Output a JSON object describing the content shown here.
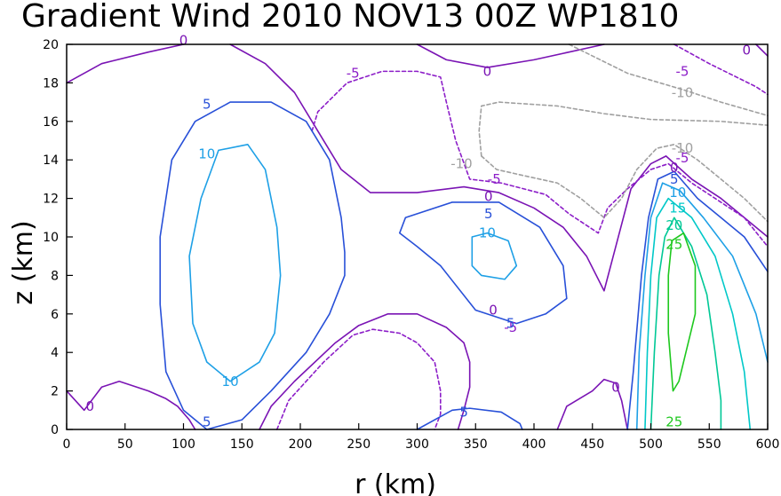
{
  "chart_data": {
    "type": "contour",
    "title": "Gradient Wind 2010 NOV13 00Z   WP1810",
    "xlabel": "r (km)",
    "ylabel": "z (km)",
    "xlim": [
      0,
      600
    ],
    "ylim": [
      0,
      20
    ],
    "xticks": [
      0,
      50,
      100,
      150,
      200,
      250,
      300,
      350,
      400,
      450,
      500,
      550,
      600
    ],
    "yticks": [
      0,
      2,
      4,
      6,
      8,
      10,
      12,
      14,
      16,
      18,
      20
    ],
    "colors": {
      "-10": "#a0a0a0",
      "-5": "#8c1ec8",
      "0": "#7a14b4",
      "5": "#2850d8",
      "10": "#1ea0e6",
      "15": "#00c8c8",
      "20": "#00c896",
      "25": "#1ec81e"
    },
    "contours": [
      {
        "level": 0,
        "dash": false,
        "points": [
          [
            0,
            18
          ],
          [
            30,
            19
          ],
          [
            70,
            19.6
          ],
          [
            100,
            20
          ]
        ]
      },
      {
        "level": 0,
        "dash": false,
        "points": [
          [
            140,
            20
          ],
          [
            170,
            19
          ],
          [
            195,
            17.5
          ],
          [
            215,
            15.5
          ],
          [
            235,
            13.5
          ],
          [
            260,
            12.3
          ],
          [
            300,
            12.3
          ],
          [
            340,
            12.6
          ],
          [
            370,
            12.3
          ],
          [
            400,
            11.5
          ],
          [
            425,
            10.5
          ],
          [
            445,
            9
          ],
          [
            460,
            7.2
          ],
          [
            470,
            9.5
          ],
          [
            483,
            12.5
          ],
          [
            500,
            13.8
          ],
          [
            513,
            14.2
          ],
          [
            535,
            13
          ],
          [
            560,
            12
          ],
          [
            580,
            11
          ],
          [
            600,
            10
          ]
        ]
      },
      {
        "level": 0,
        "dash": false,
        "points": [
          [
            300,
            20
          ],
          [
            325,
            19.2
          ],
          [
            360,
            18.8
          ],
          [
            400,
            19.2
          ],
          [
            430,
            19.6
          ],
          [
            460,
            20
          ]
        ]
      },
      {
        "level": 0,
        "dash": false,
        "points": [
          [
            590,
            20
          ],
          [
            600,
            19.4
          ]
        ]
      },
      {
        "level": 0,
        "dash": false,
        "points": [
          [
            0,
            2
          ],
          [
            15,
            1
          ],
          [
            30,
            2.2
          ],
          [
            45,
            2.5
          ],
          [
            70,
            2
          ],
          [
            85,
            1.6
          ],
          [
            95,
            1.2
          ],
          [
            105,
            0.5
          ],
          [
            110,
            0
          ]
        ]
      },
      {
        "level": 0,
        "dash": false,
        "points": [
          [
            165,
            0
          ],
          [
            175,
            1.2
          ],
          [
            195,
            2.5
          ],
          [
            230,
            4.5
          ],
          [
            250,
            5.4
          ],
          [
            275,
            6
          ],
          [
            300,
            6
          ],
          [
            325,
            5.3
          ],
          [
            340,
            4.5
          ],
          [
            345,
            3.5
          ],
          [
            345,
            2.2
          ],
          [
            340,
            1
          ],
          [
            335,
            0
          ]
        ]
      },
      {
        "level": 0,
        "dash": false,
        "points": [
          [
            420,
            0
          ],
          [
            428,
            1.2
          ],
          [
            450,
            2
          ],
          [
            460,
            2.6
          ],
          [
            470,
            2.4
          ],
          [
            475,
            1.5
          ],
          [
            480,
            0
          ]
        ]
      },
      {
        "level": -5,
        "dash": true,
        "points": [
          [
            210,
            15.5
          ],
          [
            215,
            16.5
          ],
          [
            240,
            18
          ],
          [
            270,
            18.6
          ],
          [
            300,
            18.6
          ],
          [
            320,
            18.3
          ],
          [
            325,
            17
          ],
          [
            333,
            15
          ],
          [
            345,
            13
          ],
          [
            372,
            12.8
          ],
          [
            410,
            12.2
          ],
          [
            430,
            11.2
          ],
          [
            455,
            10.2
          ],
          [
            463,
            11.5
          ],
          [
            480,
            12.5
          ],
          [
            500,
            13.5
          ],
          [
            515,
            13.8
          ],
          [
            535,
            12.8
          ],
          [
            555,
            12
          ],
          [
            580,
            11
          ],
          [
            600,
            9.5
          ]
        ]
      },
      {
        "level": -5,
        "dash": true,
        "points": [
          [
            520,
            20
          ],
          [
            550,
            19
          ],
          [
            590,
            17.8
          ],
          [
            600,
            17.4
          ]
        ]
      },
      {
        "level": -5,
        "dash": true,
        "points": [
          [
            180,
            0
          ],
          [
            190,
            1.5
          ],
          [
            220,
            3.5
          ],
          [
            245,
            4.9
          ],
          [
            262,
            5.2
          ],
          [
            285,
            5
          ],
          [
            300,
            4.5
          ],
          [
            315,
            3.5
          ],
          [
            320,
            2
          ],
          [
            320,
            0.8
          ],
          [
            315,
            0
          ]
        ]
      },
      {
        "level": -10,
        "dash": true,
        "points": [
          [
            430,
            20
          ],
          [
            480,
            18.5
          ],
          [
            530,
            17.6
          ],
          [
            560,
            17
          ],
          [
            600,
            16.3
          ]
        ]
      },
      {
        "level": -10,
        "dash": true,
        "points": [
          [
            355,
            14.2
          ],
          [
            353,
            15.5
          ],
          [
            355,
            16.8
          ],
          [
            370,
            17
          ],
          [
            420,
            16.8
          ],
          [
            460,
            16.4
          ],
          [
            500,
            16.1
          ],
          [
            560,
            16
          ],
          [
            600,
            15.8
          ]
        ]
      },
      {
        "level": -10,
        "dash": true,
        "points": [
          [
            355,
            14.2
          ],
          [
            368,
            13.5
          ],
          [
            390,
            13.2
          ],
          [
            420,
            12.8
          ],
          [
            440,
            12
          ],
          [
            460,
            11
          ],
          [
            475,
            12
          ],
          [
            488,
            13.5
          ],
          [
            505,
            14.6
          ],
          [
            520,
            14.8
          ],
          [
            540,
            14
          ],
          [
            560,
            13
          ],
          [
            580,
            12
          ],
          [
            600,
            10.8
          ]
        ]
      },
      {
        "level": 5,
        "dash": false,
        "points": [
          [
            120,
            0
          ],
          [
            150,
            0.5
          ],
          [
            175,
            2
          ],
          [
            205,
            4
          ],
          [
            225,
            6
          ],
          [
            238,
            8
          ],
          [
            238,
            9.2
          ],
          [
            235,
            11
          ],
          [
            225,
            14
          ],
          [
            205,
            16
          ],
          [
            175,
            17
          ],
          [
            140,
            17
          ],
          [
            110,
            16
          ],
          [
            90,
            14
          ],
          [
            80,
            10
          ],
          [
            80,
            6.5
          ],
          [
            85,
            3
          ],
          [
            100,
            1
          ],
          [
            120,
            0
          ]
        ]
      },
      {
        "level": 5,
        "dash": false,
        "points": [
          [
            410,
            6
          ],
          [
            385,
            5.5
          ],
          [
            350,
            6.2
          ],
          [
            320,
            8.5
          ],
          [
            300,
            9.5
          ],
          [
            285,
            10.2
          ],
          [
            290,
            11
          ],
          [
            330,
            11.8
          ],
          [
            370,
            11.8
          ],
          [
            405,
            10.5
          ],
          [
            425,
            8.5
          ],
          [
            428,
            6.8
          ],
          [
            410,
            6
          ]
        ]
      },
      {
        "level": 5,
        "dash": false,
        "points": [
          [
            300,
            0
          ],
          [
            330,
            1
          ],
          [
            345,
            1.1
          ],
          [
            372,
            0.9
          ],
          [
            388,
            0.3
          ],
          [
            390,
            0
          ]
        ]
      },
      {
        "level": 5,
        "dash": false,
        "points": [
          [
            480,
            0
          ],
          [
            485,
            3
          ],
          [
            492,
            8
          ],
          [
            498,
            11
          ],
          [
            506,
            13
          ],
          [
            520,
            13.4
          ],
          [
            540,
            12
          ],
          [
            560,
            11
          ],
          [
            580,
            10
          ],
          [
            600,
            8.2
          ]
        ]
      },
      {
        "level": 10,
        "dash": false,
        "points": [
          [
            140,
            2.5
          ],
          [
            165,
            3.5
          ],
          [
            178,
            5
          ],
          [
            183,
            8
          ],
          [
            180,
            10.5
          ],
          [
            170,
            13.5
          ],
          [
            155,
            14.8
          ],
          [
            130,
            14.5
          ],
          [
            115,
            12
          ],
          [
            105,
            9
          ],
          [
            108,
            5.5
          ],
          [
            120,
            3.5
          ],
          [
            140,
            2.5
          ]
        ]
      },
      {
        "level": 10,
        "dash": false,
        "points": [
          [
            347,
            10
          ],
          [
            360,
            10.2
          ],
          [
            378,
            9.8
          ],
          [
            385,
            8.5
          ],
          [
            375,
            7.8
          ],
          [
            355,
            8
          ],
          [
            347,
            8.5
          ],
          [
            347,
            10
          ]
        ]
      },
      {
        "level": 10,
        "dash": false,
        "points": [
          [
            488,
            0
          ],
          [
            490,
            4
          ],
          [
            495,
            8
          ],
          [
            500,
            11
          ],
          [
            510,
            12.8
          ],
          [
            525,
            12.4
          ],
          [
            545,
            11
          ],
          [
            570,
            9
          ],
          [
            590,
            6
          ],
          [
            600,
            3.5
          ]
        ]
      },
      {
        "level": 15,
        "dash": false,
        "points": [
          [
            495,
            0
          ],
          [
            497,
            4
          ],
          [
            500,
            8
          ],
          [
            505,
            11
          ],
          [
            515,
            12
          ],
          [
            535,
            11
          ],
          [
            555,
            9
          ],
          [
            570,
            6
          ],
          [
            580,
            3
          ],
          [
            585,
            0
          ]
        ]
      },
      {
        "level": 20,
        "dash": false,
        "points": [
          [
            500,
            0
          ],
          [
            503,
            4
          ],
          [
            507,
            8
          ],
          [
            512,
            10
          ],
          [
            520,
            11
          ],
          [
            535,
            9.5
          ],
          [
            548,
            7
          ],
          [
            555,
            4
          ],
          [
            560,
            1.5
          ],
          [
            560,
            0
          ]
        ]
      },
      {
        "level": 25,
        "dash": false,
        "points": [
          [
            519,
            2
          ],
          [
            515,
            5
          ],
          [
            515,
            8
          ],
          [
            518,
            9.8
          ],
          [
            528,
            10.2
          ],
          [
            538,
            8.5
          ],
          [
            538,
            6
          ],
          [
            530,
            4
          ],
          [
            524,
            2.5
          ],
          [
            519,
            2
          ]
        ]
      }
    ],
    "labels": [
      {
        "text": "0",
        "x": 100,
        "y": 20.2,
        "level": 0
      },
      {
        "text": "0",
        "x": 360,
        "y": 18.6,
        "level": 0
      },
      {
        "text": "0",
        "x": 582,
        "y": 19.7,
        "level": 0
      },
      {
        "text": "-5",
        "x": 245,
        "y": 18.5,
        "level": -5
      },
      {
        "text": "-5",
        "x": 527,
        "y": 18.6,
        "level": -5
      },
      {
        "text": "-10",
        "x": 527,
        "y": 17.5,
        "level": -10
      },
      {
        "text": "5",
        "x": 120,
        "y": 16.9,
        "level": 5
      },
      {
        "text": "10",
        "x": 120,
        "y": 14.3,
        "level": 10
      },
      {
        "text": "-10",
        "x": 338,
        "y": 13.8,
        "level": -10
      },
      {
        "text": "-5",
        "x": 366,
        "y": 13,
        "level": -5
      },
      {
        "text": "0",
        "x": 361,
        "y": 12.1,
        "level": 0
      },
      {
        "text": "5",
        "x": 361,
        "y": 11.2,
        "level": 5
      },
      {
        "text": "10",
        "x": 360,
        "y": 10.2,
        "level": 10
      },
      {
        "text": "-10",
        "x": 527,
        "y": 14.6,
        "level": -10
      },
      {
        "text": "-5",
        "x": 527,
        "y": 14.1,
        "level": -5
      },
      {
        "text": "0",
        "x": 520,
        "y": 13.6,
        "level": 0
      },
      {
        "text": "5",
        "x": 520,
        "y": 13.0,
        "level": 5
      },
      {
        "text": "10",
        "x": 523,
        "y": 12.3,
        "level": 10
      },
      {
        "text": "15",
        "x": 523,
        "y": 11.5,
        "level": 15
      },
      {
        "text": "20",
        "x": 520,
        "y": 10.6,
        "level": 20
      },
      {
        "text": "25",
        "x": 520,
        "y": 9.6,
        "level": 25
      },
      {
        "text": "0",
        "x": 365,
        "y": 6.2,
        "level": 0
      },
      {
        "text": "-5",
        "x": 380,
        "y": 5.3,
        "level": -5
      },
      {
        "text": "5",
        "x": 380,
        "y": 5.5,
        "level": 5
      },
      {
        "text": "10",
        "x": 140,
        "y": 2.5,
        "level": 10
      },
      {
        "text": "0",
        "x": 470,
        "y": 2.2,
        "level": 0
      },
      {
        "text": "0",
        "x": 20,
        "y": 1.2,
        "level": 0
      },
      {
        "text": "5",
        "x": 340,
        "y": 0.9,
        "level": 5
      },
      {
        "text": "5",
        "x": 120,
        "y": 0.4,
        "level": 5
      },
      {
        "text": "25",
        "x": 520,
        "y": 0.4,
        "level": 25
      }
    ]
  }
}
